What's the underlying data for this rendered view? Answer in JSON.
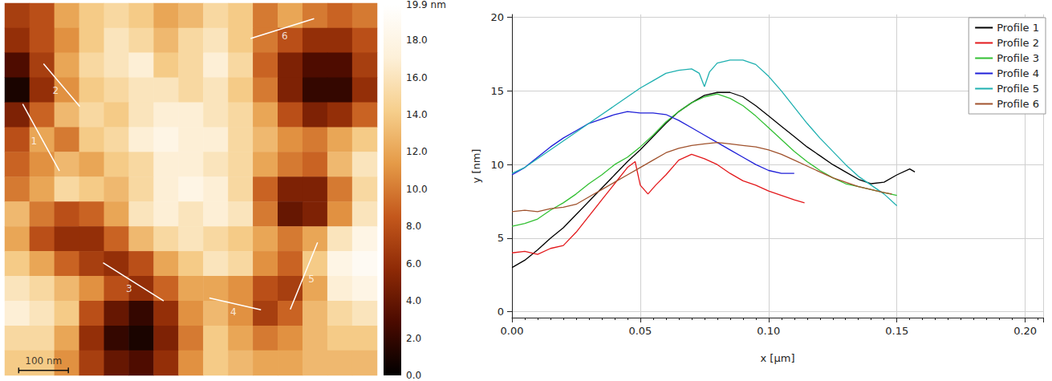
{
  "chart_data": [
    {
      "type": "heatmap",
      "xlim": [
        0,
        750
      ],
      "ylim": [
        0,
        750
      ],
      "tick_labels": false,
      "cells": [
        [
          7,
          8,
          12,
          14,
          15,
          14,
          12,
          13,
          15,
          14,
          10,
          12,
          10,
          9,
          10
        ],
        [
          6,
          8,
          11,
          14,
          16,
          15,
          13,
          15,
          16,
          14,
          10,
          8,
          6,
          6,
          8
        ],
        [
          3,
          7,
          12,
          15,
          16,
          17,
          14,
          15,
          17,
          15,
          9,
          5,
          3,
          3,
          7
        ],
        [
          1,
          6,
          11,
          14,
          15,
          16,
          16,
          15,
          16,
          14,
          10,
          5,
          2,
          2,
          6
        ],
        [
          5,
          9,
          13,
          15,
          14,
          16,
          17,
          17,
          16,
          15,
          12,
          8,
          5,
          6,
          9
        ],
        [
          8,
          12,
          10,
          14,
          15,
          17,
          18,
          17,
          17,
          15,
          13,
          11,
          10,
          12,
          14
        ],
        [
          9,
          11,
          13,
          12,
          14,
          15,
          17,
          17,
          16,
          15,
          12,
          10,
          9,
          13,
          16
        ],
        [
          10,
          12,
          15,
          14,
          13,
          15,
          17,
          18,
          17,
          15,
          9,
          5,
          5,
          10,
          15
        ],
        [
          13,
          10,
          8,
          9,
          12,
          16,
          17,
          16,
          17,
          16,
          10,
          4,
          5,
          11,
          16
        ],
        [
          12,
          8,
          6,
          6,
          9,
          13,
          15,
          16,
          15,
          14,
          12,
          10,
          12,
          16,
          18
        ],
        [
          14,
          12,
          9,
          7,
          6,
          8,
          12,
          14,
          16,
          15,
          11,
          9,
          14,
          18,
          19
        ],
        [
          16,
          15,
          13,
          11,
          8,
          6,
          9,
          12,
          12,
          11,
          8,
          7,
          12,
          17,
          18
        ],
        [
          17,
          16,
          14,
          8,
          4,
          2,
          6,
          11,
          13,
          11,
          7,
          9,
          13,
          15,
          16
        ],
        [
          15,
          15,
          12,
          6,
          2,
          1,
          5,
          10,
          14,
          12,
          10,
          11,
          13,
          14,
          14
        ],
        [
          14,
          14,
          11,
          7,
          4,
          3,
          6,
          11,
          14,
          13,
          12,
          12,
          13,
          13,
          13
        ]
      ],
      "colorbar": {
        "range": [
          0,
          19.9
        ],
        "ticks": [
          {
            "value": 19.9,
            "label": "19.9 nm"
          },
          {
            "value": 18,
            "label": "18.0"
          },
          {
            "value": 16,
            "label": "16.0"
          },
          {
            "value": 14,
            "label": "14.0"
          },
          {
            "value": 12,
            "label": "12.0"
          },
          {
            "value": 10,
            "label": "10.0"
          },
          {
            "value": 8,
            "label": "8.0"
          },
          {
            "value": 6,
            "label": "6.0"
          },
          {
            "value": 4,
            "label": "4.0"
          },
          {
            "value": 2,
            "label": "2.0"
          },
          {
            "value": 0,
            "label": "0.0"
          }
        ]
      },
      "profiles": [
        {
          "name": "1",
          "x": [
            36,
            110
          ],
          "y": [
            203,
            338
          ]
        },
        {
          "name": "2",
          "x": [
            78,
            151
          ],
          "y": [
            122,
            208
          ]
        },
        {
          "name": "3",
          "x": [
            198,
            320
          ],
          "y": [
            523,
            600
          ]
        },
        {
          "name": "4",
          "x": [
            412,
            516
          ],
          "y": [
            594,
            618
          ]
        },
        {
          "name": "5",
          "x": [
            575,
            630
          ],
          "y": [
            617,
            482
          ]
        },
        {
          "name": "6",
          "x": [
            495,
            623
          ],
          "y": [
            71,
            31
          ]
        }
      ],
      "scale_bar": {
        "label": "100 nm",
        "length": 100
      }
    },
    {
      "type": "line",
      "xlabel": "x [μm]",
      "ylabel": "y [nm]",
      "xlim": [
        0,
        0.207
      ],
      "ylim": [
        -0.4,
        20.2
      ],
      "xticks": [
        {
          "value": 0,
          "label": "0.00"
        },
        {
          "value": 0.05,
          "label": "0.05"
        },
        {
          "value": 0.1,
          "label": "0.10"
        },
        {
          "value": 0.15,
          "label": "0.15"
        },
        {
          "value": 0.2,
          "label": "0.20"
        }
      ],
      "yticks": [
        0,
        5,
        10,
        15,
        20
      ],
      "grid": true,
      "legend": "upper right",
      "series": [
        {
          "name": "Profile 1",
          "color": "#000000",
          "x": [
            0,
            0.005,
            0.01,
            0.015,
            0.02,
            0.025,
            0.03,
            0.035,
            0.04,
            0.045,
            0.05,
            0.055,
            0.06,
            0.065,
            0.07,
            0.075,
            0.08,
            0.085,
            0.09,
            0.095,
            0.1,
            0.105,
            0.11,
            0.115,
            0.12,
            0.125,
            0.13,
            0.135,
            0.14,
            0.145,
            0.15,
            0.155,
            0.157
          ],
          "values": [
            3.0,
            3.5,
            4.2,
            5.0,
            5.7,
            6.6,
            7.5,
            8.4,
            9.3,
            10.2,
            11.0,
            11.9,
            12.8,
            13.6,
            14.2,
            14.7,
            14.9,
            14.9,
            14.6,
            14.0,
            13.3,
            12.6,
            11.9,
            11.2,
            10.6,
            10.0,
            9.5,
            9.0,
            8.7,
            8.8,
            9.3,
            9.7,
            9.5
          ]
        },
        {
          "name": "Profile 2",
          "color": "#e3191c",
          "x": [
            0,
            0.005,
            0.01,
            0.015,
            0.02,
            0.025,
            0.03,
            0.035,
            0.04,
            0.045,
            0.048,
            0.05,
            0.053,
            0.056,
            0.06,
            0.065,
            0.07,
            0.075,
            0.08,
            0.085,
            0.09,
            0.095,
            0.1,
            0.105,
            0.11,
            0.114
          ],
          "values": [
            4.0,
            4.1,
            3.9,
            4.3,
            4.5,
            5.4,
            6.5,
            7.6,
            8.7,
            9.8,
            10.2,
            8.6,
            8.0,
            8.6,
            9.3,
            10.3,
            10.7,
            10.4,
            10.0,
            9.4,
            8.9,
            8.6,
            8.2,
            7.9,
            7.6,
            7.4
          ]
        },
        {
          "name": "Profile 3",
          "color": "#33c033",
          "x": [
            0,
            0.005,
            0.01,
            0.015,
            0.02,
            0.025,
            0.03,
            0.035,
            0.04,
            0.045,
            0.05,
            0.055,
            0.06,
            0.065,
            0.07,
            0.075,
            0.08,
            0.085,
            0.09,
            0.095,
            0.1,
            0.105,
            0.11,
            0.115,
            0.12,
            0.125,
            0.13,
            0.135,
            0.14,
            0.145,
            0.15
          ],
          "values": [
            5.8,
            6.0,
            6.3,
            6.9,
            7.4,
            8.0,
            8.7,
            9.3,
            10.0,
            10.5,
            11.2,
            12.0,
            12.9,
            13.6,
            14.2,
            14.6,
            14.8,
            14.5,
            14.0,
            13.3,
            12.5,
            11.7,
            10.9,
            10.2,
            9.6,
            9.1,
            8.7,
            8.5,
            8.3,
            8.1,
            7.9
          ]
        },
        {
          "name": "Profile 4",
          "color": "#1f1fd8",
          "x": [
            0,
            0.005,
            0.01,
            0.015,
            0.02,
            0.025,
            0.03,
            0.035,
            0.04,
            0.045,
            0.05,
            0.055,
            0.06,
            0.065,
            0.07,
            0.075,
            0.08,
            0.085,
            0.09,
            0.095,
            0.1,
            0.105,
            0.11
          ],
          "values": [
            9.3,
            9.8,
            10.5,
            11.2,
            11.8,
            12.3,
            12.8,
            13.1,
            13.4,
            13.6,
            13.5,
            13.5,
            13.4,
            13.0,
            12.5,
            12.0,
            11.5,
            11.0,
            10.5,
            10.0,
            9.6,
            9.4,
            9.4
          ]
        },
        {
          "name": "Profile 5",
          "color": "#1fb0b0",
          "x": [
            0,
            0.005,
            0.01,
            0.015,
            0.02,
            0.025,
            0.03,
            0.035,
            0.04,
            0.045,
            0.05,
            0.055,
            0.06,
            0.065,
            0.07,
            0.073,
            0.075,
            0.077,
            0.08,
            0.085,
            0.09,
            0.095,
            0.1,
            0.105,
            0.11,
            0.115,
            0.12,
            0.125,
            0.13,
            0.135,
            0.14,
            0.145,
            0.15
          ],
          "values": [
            9.4,
            9.8,
            10.4,
            11.0,
            11.6,
            12.2,
            12.8,
            13.4,
            14.0,
            14.6,
            15.2,
            15.7,
            16.2,
            16.4,
            16.5,
            16.2,
            15.3,
            16.3,
            16.9,
            17.1,
            17.1,
            16.8,
            16.0,
            15.0,
            13.9,
            12.8,
            11.8,
            10.9,
            10.0,
            9.2,
            8.6,
            8.0,
            7.2
          ]
        },
        {
          "name": "Profile 6",
          "color": "#a0522d",
          "x": [
            0,
            0.005,
            0.01,
            0.015,
            0.02,
            0.025,
            0.03,
            0.035,
            0.04,
            0.045,
            0.05,
            0.055,
            0.06,
            0.065,
            0.07,
            0.075,
            0.08,
            0.085,
            0.09,
            0.095,
            0.1,
            0.105,
            0.11,
            0.115,
            0.12,
            0.125,
            0.13,
            0.135,
            0.14,
            0.145,
            0.148
          ],
          "values": [
            6.8,
            6.9,
            6.8,
            7.0,
            7.1,
            7.3,
            7.8,
            8.3,
            8.8,
            9.3,
            9.8,
            10.3,
            10.8,
            11.1,
            11.3,
            11.4,
            11.5,
            11.4,
            11.3,
            11.2,
            11.0,
            10.7,
            10.3,
            9.9,
            9.5,
            9.1,
            8.8,
            8.5,
            8.3,
            8.1,
            8.0
          ]
        }
      ]
    }
  ]
}
